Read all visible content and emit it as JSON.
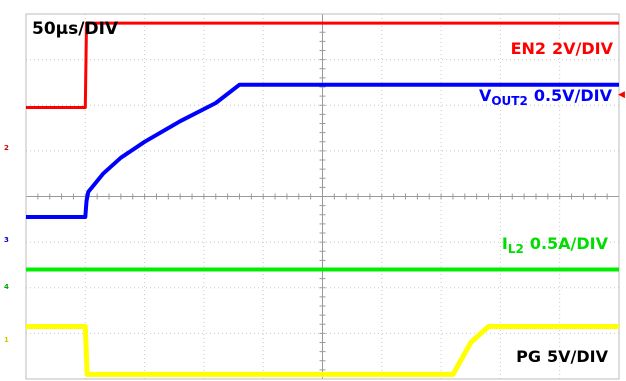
{
  "chart_data": {
    "type": "line",
    "time_base": "50µs/DIV",
    "grid": true,
    "divisions": {
      "x": 10,
      "y": 8
    },
    "series": [
      {
        "name": "EN2",
        "scale": "2V/DIV",
        "label_parts": {
          "main": "EN2",
          "sub": "",
          "scale": "2V/DIV"
        },
        "color": "#ff0000",
        "x": [
          0,
          1.0,
          1.02,
          10
        ],
        "y": [
          5.95,
          5.95,
          7.8,
          7.8
        ]
      },
      {
        "name": "VOUT2",
        "scale": "0.5V/DIV",
        "label_parts": {
          "main": "V",
          "sub": "OUT2",
          "scale": "0.5V/DIV"
        },
        "color": "#0000ff",
        "x": [
          0,
          1.0,
          1.02,
          1.05,
          1.3,
          1.6,
          2.0,
          2.6,
          3.2,
          3.6,
          10
        ],
        "y": [
          3.55,
          3.55,
          3.9,
          4.1,
          4.5,
          4.85,
          5.2,
          5.65,
          6.05,
          6.45,
          6.45
        ]
      },
      {
        "name": "IL2",
        "scale": "0.5A/DIV",
        "label_parts": {
          "main": "I",
          "sub": "L2",
          "scale": "0.5A/DIV"
        },
        "color": "#00ee00",
        "x": [
          0,
          10
        ],
        "y": [
          2.4,
          2.4
        ]
      },
      {
        "name": "PG",
        "scale": "5V/DIV",
        "label_parts": {
          "main": "PG",
          "sub": "",
          "scale": "5V/DIV"
        },
        "color": "#ffff00",
        "x": [
          0,
          1.0,
          1.03,
          7.2,
          7.5,
          7.8,
          10
        ],
        "y": [
          1.15,
          1.15,
          0.1,
          0.1,
          0.8,
          1.15,
          1.15
        ]
      }
    ]
  },
  "colors": {
    "background": "#ffffff",
    "grid": "#c8c8c8",
    "grid_center": "#9a9a9a",
    "border": "#bdbdbd"
  },
  "markers": {
    "channel_1": "1",
    "channel_2": "2",
    "channel_3": "3",
    "channel_4": "4",
    "trigger": "◀"
  }
}
